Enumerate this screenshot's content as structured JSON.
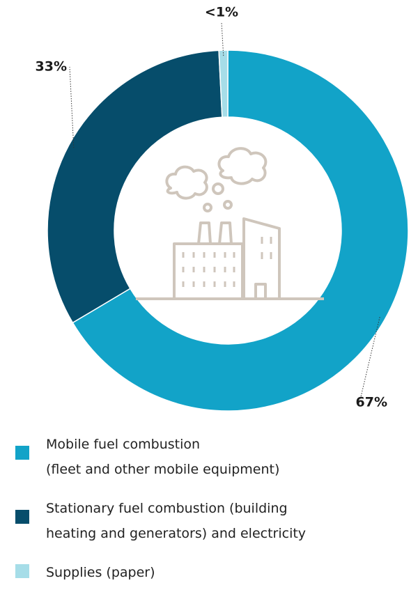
{
  "chart_data": {
    "type": "donut",
    "labels": [
      "Mobile fuel combustion\n(fleet and other mobile equipment)",
      "Stationary fuel combustion (building\nheating and generators) and electricity",
      "Supplies (paper)"
    ],
    "values": [
      67,
      33,
      0.8
    ],
    "value_labels": [
      "67%",
      "33%",
      "<1%"
    ],
    "colors": [
      "#12a3c8",
      "#064d6b",
      "#a6dde8"
    ]
  }
}
